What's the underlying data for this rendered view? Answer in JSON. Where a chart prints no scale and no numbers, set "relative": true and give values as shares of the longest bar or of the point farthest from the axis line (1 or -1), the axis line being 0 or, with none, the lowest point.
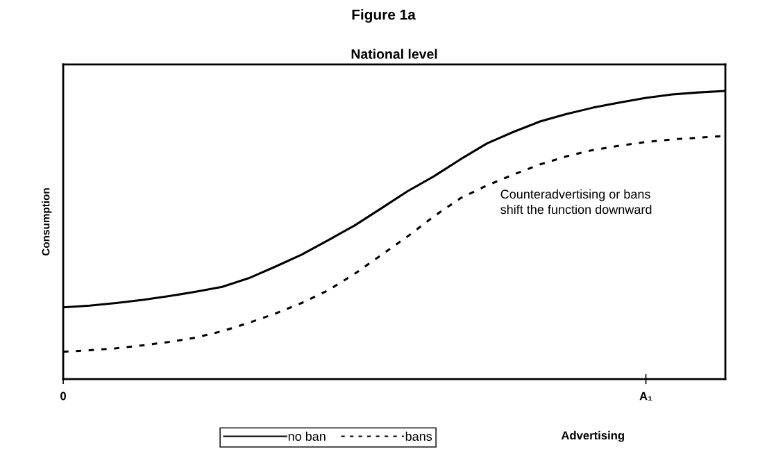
{
  "chart_data": {
    "type": "line",
    "title": "Figure 1a",
    "subtitle": "National level",
    "xlabel": "Advertising",
    "ylabel": "Consumption",
    "relative": true,
    "categories": [
      "0",
      null,
      null,
      null,
      null,
      null,
      null,
      null,
      null,
      null,
      null,
      null,
      null,
      null,
      null,
      null,
      null,
      null,
      null,
      null,
      null,
      null,
      "A₁",
      null,
      null,
      null
    ],
    "tick_labels": "x",
    "grid": false,
    "legend": "bottom",
    "marker": "none",
    "annotations": [
      "Counteradvertising or bans\nshift the function downward"
    ],
    "series": [
      {
        "name": "no ban",
        "color": "#000000",
        "line_style": "solid",
        "values": [
          0.249,
          0.255,
          0.264,
          0.275,
          0.288,
          0.303,
          0.32,
          0.35,
          0.39,
          0.432,
          0.482,
          0.533,
          0.592,
          0.652,
          0.704,
          0.763,
          0.818,
          0.858,
          0.894,
          0.92,
          0.942,
          0.96,
          0.976,
          0.988,
          0.995,
          1.0
        ]
      },
      {
        "name": "bans",
        "color": "#000000",
        "line_style": "dotted",
        "values": [
          0.095,
          0.1,
          0.107,
          0.117,
          0.129,
          0.144,
          0.166,
          0.195,
          0.227,
          0.264,
          0.308,
          0.365,
          0.43,
          0.495,
          0.565,
          0.628,
          0.672,
          0.71,
          0.745,
          0.773,
          0.795,
          0.81,
          0.823,
          0.832,
          0.838,
          0.844
        ]
      }
    ]
  }
}
